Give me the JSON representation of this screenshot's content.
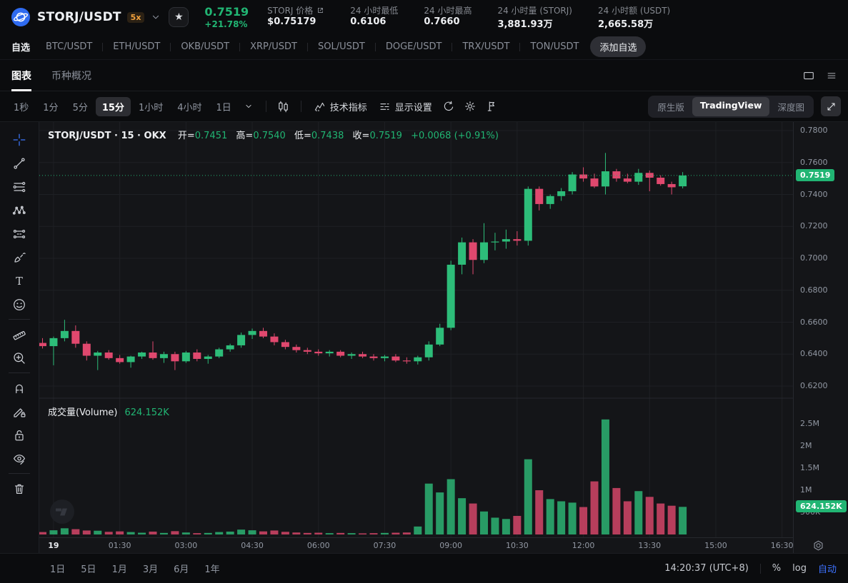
{
  "header": {
    "pair": "STORJ/USDT",
    "leverage": "5x",
    "price": "0.7519",
    "change": "+21.78%",
    "stats": [
      {
        "label": "STORJ 价格",
        "value": "$0.75179",
        "link": true
      },
      {
        "label": "24 小时最低",
        "value": "0.6106"
      },
      {
        "label": "24 小时最高",
        "value": "0.7660"
      },
      {
        "label": "24 小时量 (STORJ)",
        "value": "3,881.93万"
      },
      {
        "label": "24 小时额 (USDT)",
        "value": "2,665.58万"
      }
    ]
  },
  "watchlist": {
    "items": [
      {
        "label": "自选",
        "active": true
      },
      {
        "label": "BTC/USDT"
      },
      {
        "label": "ETH/USDT"
      },
      {
        "label": "OKB/USDT"
      },
      {
        "label": "XRP/USDT"
      },
      {
        "label": "SOL/USDT"
      },
      {
        "label": "DOGE/USDT"
      },
      {
        "label": "TRX/USDT"
      },
      {
        "label": "TON/USDT"
      }
    ],
    "add_label": "添加自选"
  },
  "module_tabs": {
    "chart_label": "图表",
    "overview_label": "币种概况"
  },
  "toolbar": {
    "timeframes": [
      "1秒",
      "1分",
      "5分",
      "15分",
      "1小时",
      "4小时",
      "1日"
    ],
    "active_timeframe": "15分",
    "indicators_label": "技术指标",
    "display_label": "显示设置",
    "view_options": [
      "原生版",
      "TradingView",
      "深度图"
    ],
    "active_view": "TradingView"
  },
  "legend": {
    "symbol": "STORJ/USDT · 15 · OKX",
    "o_label": "开",
    "o": "0.7451",
    "h_label": "高",
    "h": "0.7540",
    "l_label": "低",
    "l": "0.7438",
    "c_label": "收",
    "c": "0.7519",
    "change": "+0.0068 (+0.91%)"
  },
  "volume_legend": {
    "label": "成交量(Volume)",
    "value": "624.152K"
  },
  "axes": {
    "price_ticks": [
      "0.7800",
      "0.7600",
      "0.7400",
      "0.7200",
      "0.7000",
      "0.6800",
      "0.6600",
      "0.6400",
      "0.6200"
    ],
    "current_price_label": "0.7519",
    "volume_ticks": [
      {
        "label": "2.5M",
        "v": 2500000
      },
      {
        "label": "2M",
        "v": 2000000
      },
      {
        "label": "1.5M",
        "v": 1500000
      },
      {
        "label": "1M",
        "v": 1000000
      },
      {
        "label": "500K",
        "v": 500000
      }
    ],
    "current_volume_label": "624.152K",
    "time_ticks": [
      {
        "label": "19",
        "major": true
      },
      {
        "label": "01:30"
      },
      {
        "label": "03:00"
      },
      {
        "label": "04:30"
      },
      {
        "label": "06:00"
      },
      {
        "label": "07:30"
      },
      {
        "label": "09:00"
      },
      {
        "label": "10:30"
      },
      {
        "label": "12:00"
      },
      {
        "label": "13:30"
      },
      {
        "label": "15:00"
      },
      {
        "label": "16:30"
      }
    ]
  },
  "bottom_bar": {
    "ranges": [
      "1日",
      "5日",
      "1月",
      "3月",
      "6月",
      "1年"
    ],
    "clock": "14:20:37 (UTC+8)",
    "percent_label": "%",
    "log_label": "log",
    "auto_label": "自动"
  },
  "colors": {
    "up": "#2dbd79",
    "down": "#e0486e",
    "green_text": "#21b573",
    "blue": "#3d72ff",
    "orange": "#f0a03c",
    "grid": "#1e2024"
  },
  "chart_data": {
    "type": "candlestick",
    "symbol": "STORJ/USDT",
    "exchange": "OKX",
    "interval": "15m",
    "current_price": 0.7519,
    "current_volume": 624152,
    "price_axis": {
      "min": 0.62,
      "max": 0.78,
      "step": 0.02
    },
    "volume_axis": {
      "ticks": [
        500000,
        1000000,
        1500000,
        2000000,
        2500000
      ]
    },
    "candles": [
      [
        "23:45",
        0.647,
        0.65,
        0.6435,
        0.645,
        55000
      ],
      [
        "00:00",
        0.645,
        0.651,
        0.633,
        0.65,
        95000
      ],
      [
        "00:15",
        0.65,
        0.6615,
        0.648,
        0.6545,
        140000
      ],
      [
        "00:30",
        0.6545,
        0.658,
        0.644,
        0.6465,
        120000
      ],
      [
        "00:45",
        0.6465,
        0.648,
        0.636,
        0.639,
        90000
      ],
      [
        "01:00",
        0.639,
        0.642,
        0.63,
        0.641,
        85000
      ],
      [
        "01:15",
        0.641,
        0.6425,
        0.6365,
        0.6375,
        60000
      ],
      [
        "01:30",
        0.6375,
        0.6395,
        0.634,
        0.635,
        70000
      ],
      [
        "01:45",
        0.635,
        0.639,
        0.6315,
        0.6385,
        55000
      ],
      [
        "02:00",
        0.6385,
        0.6415,
        0.637,
        0.641,
        40000
      ],
      [
        "02:15",
        0.641,
        0.648,
        0.6365,
        0.6375,
        65000
      ],
      [
        "02:30",
        0.6375,
        0.6415,
        0.6345,
        0.64,
        35000
      ],
      [
        "02:45",
        0.64,
        0.6415,
        0.63,
        0.6355,
        75000
      ],
      [
        "03:00",
        0.6355,
        0.642,
        0.6345,
        0.641,
        45000
      ],
      [
        "03:15",
        0.641,
        0.643,
        0.6355,
        0.637,
        30000
      ],
      [
        "03:30",
        0.637,
        0.6395,
        0.634,
        0.6385,
        35000
      ],
      [
        "03:45",
        0.6385,
        0.644,
        0.6375,
        0.643,
        55000
      ],
      [
        "04:00",
        0.643,
        0.6465,
        0.6415,
        0.6455,
        65000
      ],
      [
        "04:15",
        0.6455,
        0.6535,
        0.644,
        0.652,
        110000
      ],
      [
        "04:30",
        0.652,
        0.656,
        0.6495,
        0.6545,
        95000
      ],
      [
        "04:45",
        0.6545,
        0.6565,
        0.65,
        0.651,
        70000
      ],
      [
        "05:00",
        0.651,
        0.653,
        0.6455,
        0.6475,
        90000
      ],
      [
        "05:15",
        0.6475,
        0.649,
        0.643,
        0.6445,
        60000
      ],
      [
        "05:30",
        0.6445,
        0.646,
        0.641,
        0.6425,
        45000
      ],
      [
        "05:45",
        0.6425,
        0.644,
        0.64,
        0.6415,
        35000
      ],
      [
        "06:00",
        0.6415,
        0.643,
        0.639,
        0.6405,
        40000
      ],
      [
        "06:15",
        0.6405,
        0.6425,
        0.6385,
        0.6415,
        30000
      ],
      [
        "06:30",
        0.6415,
        0.6425,
        0.638,
        0.639,
        35000
      ],
      [
        "06:45",
        0.639,
        0.641,
        0.637,
        0.64,
        30000
      ],
      [
        "07:00",
        0.64,
        0.6415,
        0.6375,
        0.6385,
        25000
      ],
      [
        "07:15",
        0.6385,
        0.64,
        0.636,
        0.6375,
        30000
      ],
      [
        "07:30",
        0.6375,
        0.6395,
        0.6355,
        0.6385,
        35000
      ],
      [
        "07:45",
        0.6385,
        0.64,
        0.635,
        0.636,
        40000
      ],
      [
        "08:00",
        0.636,
        0.638,
        0.634,
        0.6355,
        45000
      ],
      [
        "08:15",
        0.6355,
        0.639,
        0.6335,
        0.638,
        180000
      ],
      [
        "08:30",
        0.638,
        0.648,
        0.636,
        0.646,
        1150000
      ],
      [
        "08:45",
        0.646,
        0.659,
        0.645,
        0.6565,
        950000
      ],
      [
        "09:00",
        0.6565,
        0.6985,
        0.655,
        0.696,
        1250000
      ],
      [
        "09:15",
        0.696,
        0.713,
        0.69,
        0.71,
        820000
      ],
      [
        "09:30",
        0.71,
        0.712,
        0.69,
        0.699,
        700000
      ],
      [
        "09:45",
        0.699,
        0.722,
        0.697,
        0.71,
        520000
      ],
      [
        "10:00",
        0.71,
        0.716,
        0.705,
        0.7105,
        380000
      ],
      [
        "10:15",
        0.7105,
        0.718,
        0.706,
        0.712,
        350000
      ],
      [
        "10:30",
        0.712,
        0.717,
        0.708,
        0.711,
        420000
      ],
      [
        "10:45",
        0.711,
        0.745,
        0.708,
        0.7435,
        1700000
      ],
      [
        "11:00",
        0.7435,
        0.745,
        0.73,
        0.734,
        1000000
      ],
      [
        "11:15",
        0.734,
        0.74,
        0.731,
        0.739,
        800000
      ],
      [
        "11:30",
        0.739,
        0.744,
        0.736,
        0.742,
        750000
      ],
      [
        "11:45",
        0.742,
        0.754,
        0.74,
        0.7525,
        720000
      ],
      [
        "12:00",
        0.7525,
        0.757,
        0.748,
        0.75,
        620000
      ],
      [
        "12:15",
        0.75,
        0.753,
        0.744,
        0.745,
        1200000
      ],
      [
        "12:30",
        0.745,
        0.766,
        0.74,
        0.7545,
        2600000
      ],
      [
        "12:45",
        0.7545,
        0.756,
        0.748,
        0.75,
        1050000
      ],
      [
        "13:00",
        0.75,
        0.753,
        0.747,
        0.748,
        750000
      ],
      [
        "13:15",
        0.748,
        0.756,
        0.746,
        0.7535,
        980000
      ],
      [
        "13:30",
        0.7535,
        0.755,
        0.742,
        0.7505,
        850000
      ],
      [
        "13:45",
        0.7505,
        0.752,
        0.7455,
        0.7465,
        700000
      ],
      [
        "14:00",
        0.7465,
        0.748,
        0.74,
        0.7445,
        650000
      ],
      [
        "14:15",
        0.7451,
        0.754,
        0.7438,
        0.7519,
        624152
      ]
    ]
  }
}
